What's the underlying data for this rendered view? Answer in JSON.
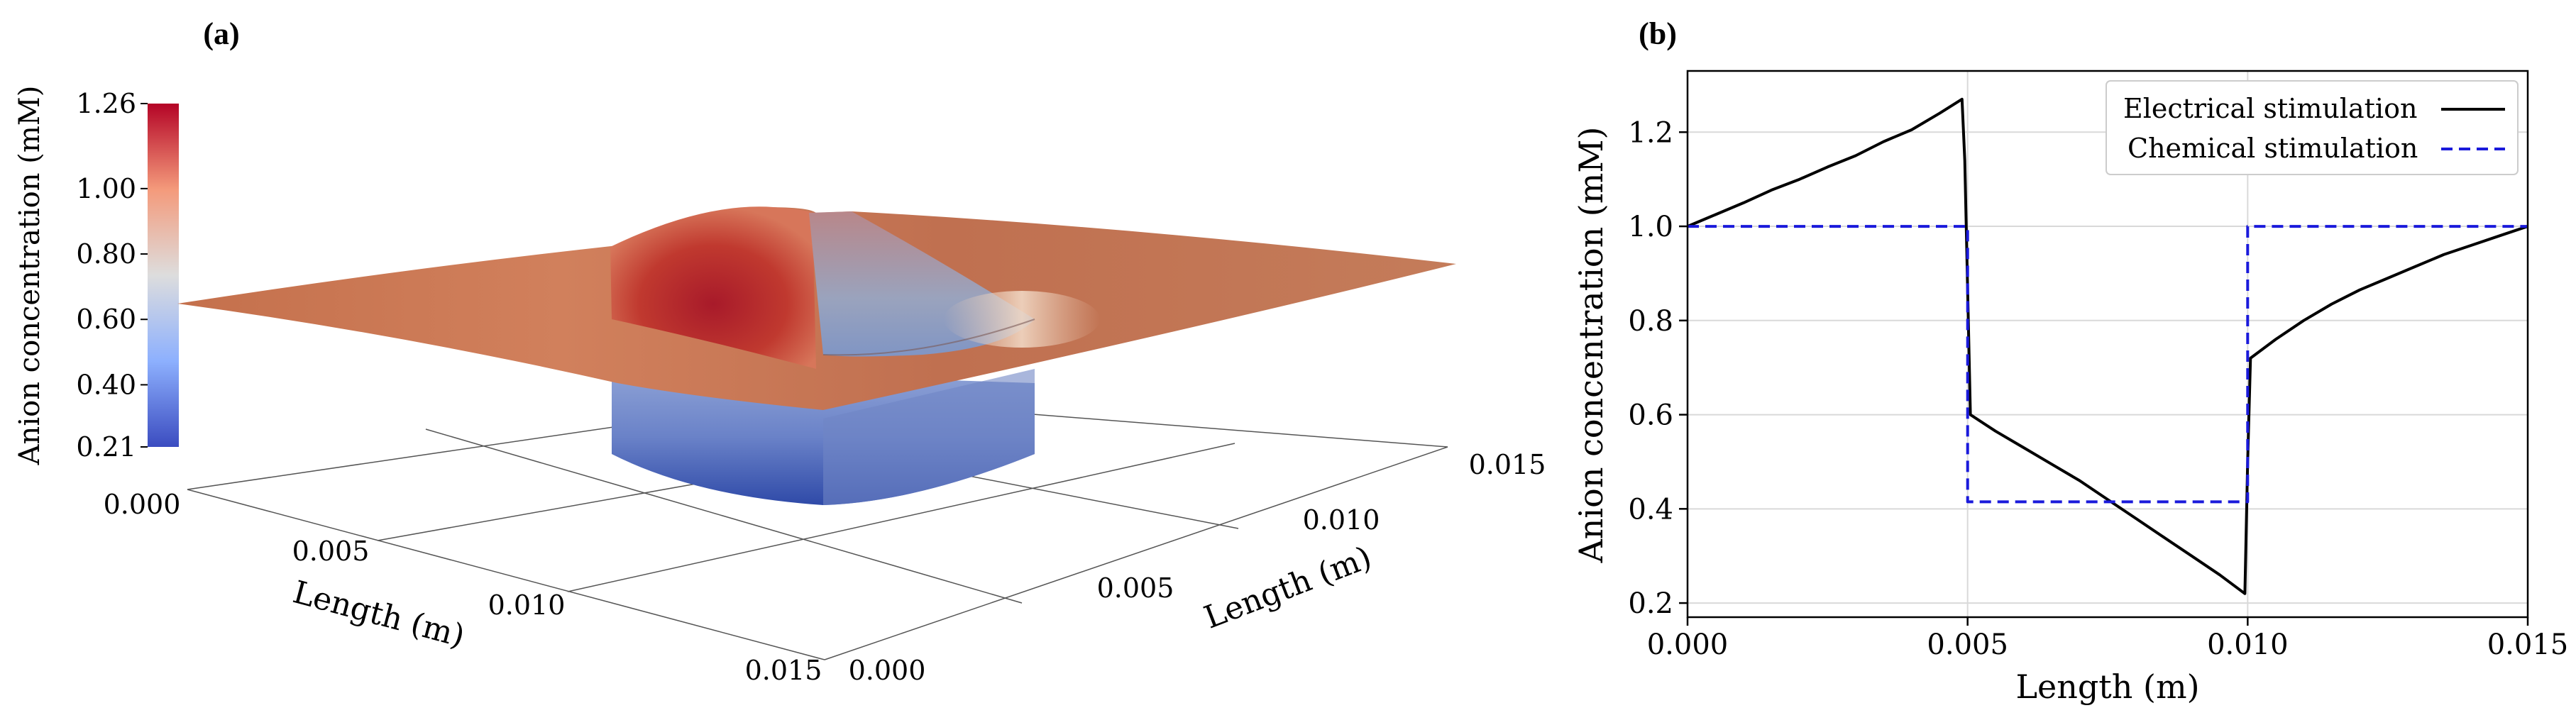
{
  "panels": {
    "a_label": "(a)",
    "b_label": "(b)"
  },
  "chart_data": [
    {
      "type": "surface3d",
      "title": "(a)",
      "colorbar": {
        "label": "Anion concentration (mM)",
        "ticks": [
          "1.26",
          "1.00",
          "0.80",
          "0.60",
          "0.40",
          "0.21"
        ],
        "min": 0.21,
        "max": 1.26,
        "colormap": [
          "#3b4cc0",
          "#dddddd",
          "#b40426"
        ]
      },
      "x_axis": {
        "label": "Length (m)",
        "ticks": [
          "0.000",
          "0.005",
          "0.010",
          "0.015"
        ],
        "range": [
          0,
          0.015
        ]
      },
      "y_axis": {
        "label": "Length (m)",
        "ticks": [
          "0.000",
          "0.005",
          "0.010",
          "0.015"
        ],
        "range": [
          0,
          0.015
        ]
      },
      "description_values": {
        "plateau": 1.0,
        "peak": 1.26,
        "well_bottom": 0.21
      }
    },
    {
      "type": "line",
      "title": "(b)",
      "xlabel": "Length (m)",
      "ylabel": "Anion concentration (mM)",
      "xlim": [
        0,
        0.015
      ],
      "ylim": [
        0.17,
        1.33
      ],
      "xticks": [
        "0.000",
        "0.005",
        "0.010",
        "0.015"
      ],
      "yticks": [
        "0.2",
        "0.4",
        "0.6",
        "0.8",
        "1.0",
        "1.2"
      ],
      "grid": true,
      "legend": "top-right",
      "series": [
        {
          "name": "Electrical stimulation",
          "color": "#000000",
          "dash": "solid",
          "x": [
            0,
            0.0005,
            0.001,
            0.0015,
            0.002,
            0.0025,
            0.003,
            0.0035,
            0.004,
            0.0045,
            0.0049,
            0.00495,
            0.00505,
            0.0055,
            0.006,
            0.0065,
            0.007,
            0.0075,
            0.008,
            0.0085,
            0.009,
            0.0095,
            0.00995,
            0.01,
            0.01005,
            0.0105,
            0.011,
            0.0115,
            0.012,
            0.0125,
            0.013,
            0.0135,
            0.014,
            0.0145,
            0.015
          ],
          "y": [
            1.0,
            1.025,
            1.05,
            1.077,
            1.1,
            1.126,
            1.15,
            1.18,
            1.205,
            1.24,
            1.27,
            1.14,
            0.6,
            0.565,
            0.53,
            0.495,
            0.46,
            0.42,
            0.38,
            0.34,
            0.3,
            0.26,
            0.22,
            0.5,
            0.72,
            0.76,
            0.8,
            0.835,
            0.865,
            0.89,
            0.915,
            0.94,
            0.96,
            0.98,
            1.0
          ]
        },
        {
          "name": "Chemical stimulation",
          "color": "#1a1adb",
          "dash": "dashed",
          "x": [
            0,
            0.005,
            0.005,
            0.01,
            0.01,
            0.015
          ],
          "y": [
            1.0,
            1.0,
            0.415,
            0.415,
            1.0,
            1.0
          ]
        }
      ]
    }
  ]
}
